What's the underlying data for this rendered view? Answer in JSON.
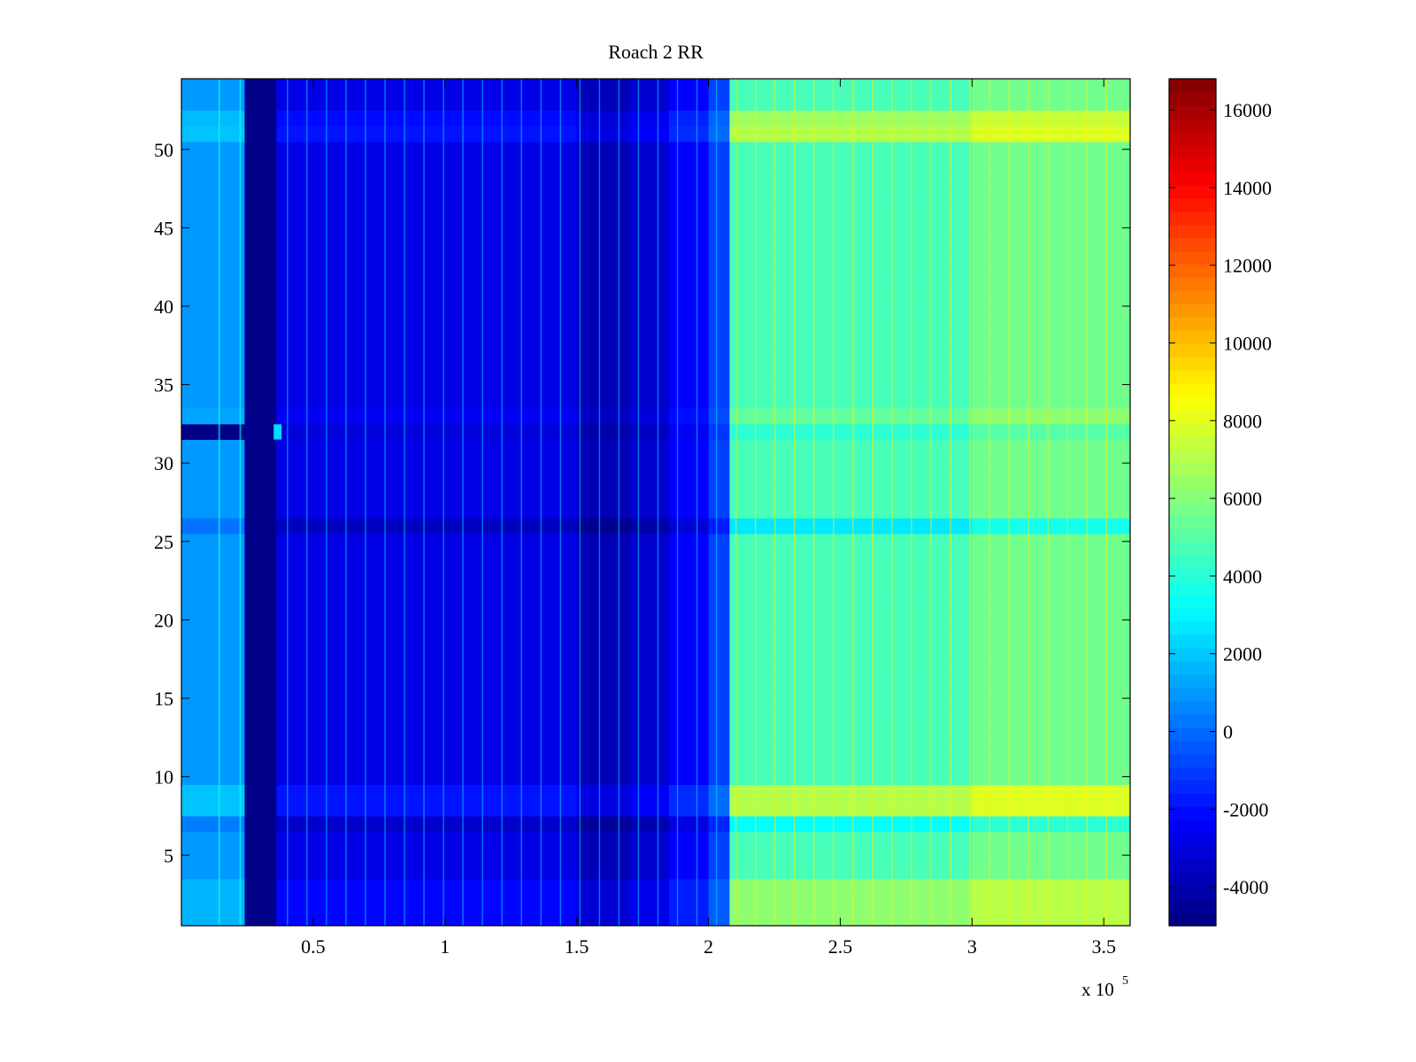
{
  "chart_data": {
    "type": "heatmap",
    "title": "Roach 2 RR",
    "xlabel": "",
    "ylabel": "",
    "x_multiplier_label": "x 10",
    "x_multiplier_exponent": "5",
    "xlim": [
      0,
      360000
    ],
    "ylim": [
      0.5,
      54.5
    ],
    "n_channels": 54,
    "x_ticks": [
      0.5,
      1,
      1.5,
      2,
      2.5,
      3,
      3.5
    ],
    "x_tick_labels": [
      "0.5",
      "1",
      "1.5",
      "2",
      "2.5",
      "3",
      "3.5"
    ],
    "y_ticks": [
      5,
      10,
      15,
      20,
      25,
      30,
      35,
      40,
      45,
      50
    ],
    "y_tick_labels": [
      "5",
      "10",
      "15",
      "20",
      "25",
      "30",
      "35",
      "40",
      "45",
      "50"
    ],
    "colorbar": {
      "colormap": "jet",
      "clim": [
        -5000,
        16800
      ],
      "ticks": [
        -4000,
        -2000,
        0,
        2000,
        4000,
        6000,
        8000,
        10000,
        12000,
        14000,
        16000
      ],
      "tick_labels": [
        "-4000",
        "-2000",
        "0",
        "2000",
        "4000",
        "6000",
        "8000",
        "10000",
        "12000",
        "14000",
        "16000"
      ]
    },
    "x_segments": [
      {
        "x_start": 0,
        "x_end": 24000,
        "value": 1000
      },
      {
        "x_start": 24000,
        "x_end": 36000,
        "value": -4800
      },
      {
        "x_start": 36000,
        "x_end": 150000,
        "value": -2800
      },
      {
        "x_start": 150000,
        "x_end": 170000,
        "value": -3800
      },
      {
        "x_start": 170000,
        "x_end": 185000,
        "value": -3300
      },
      {
        "x_start": 185000,
        "x_end": 200000,
        "value": -2300
      },
      {
        "x_start": 200000,
        "x_end": 208000,
        "value": -900
      },
      {
        "x_start": 208000,
        "x_end": 300000,
        "value": 4700
      },
      {
        "x_start": 300000,
        "x_end": 360000,
        "value": 5600
      }
    ],
    "channel_offsets": [
      {
        "channel": 1,
        "offset": 1500
      },
      {
        "channel": 2,
        "offset": 1500
      },
      {
        "channel": 3,
        "offset": 1500
      },
      {
        "channel": 7,
        "offset": -1500
      },
      {
        "channel": 8,
        "offset": 2300
      },
      {
        "channel": 9,
        "offset": 2300
      },
      {
        "channel": 26,
        "offset": -2000
      },
      {
        "channel": 32,
        "offset": -600,
        "note": "dark at x < 24000, bright near x = 36000"
      },
      {
        "channel": 33,
        "offset": 600
      },
      {
        "channel": 51,
        "offset": 2300
      },
      {
        "channel": 52,
        "offset": 1800
      }
    ]
  }
}
